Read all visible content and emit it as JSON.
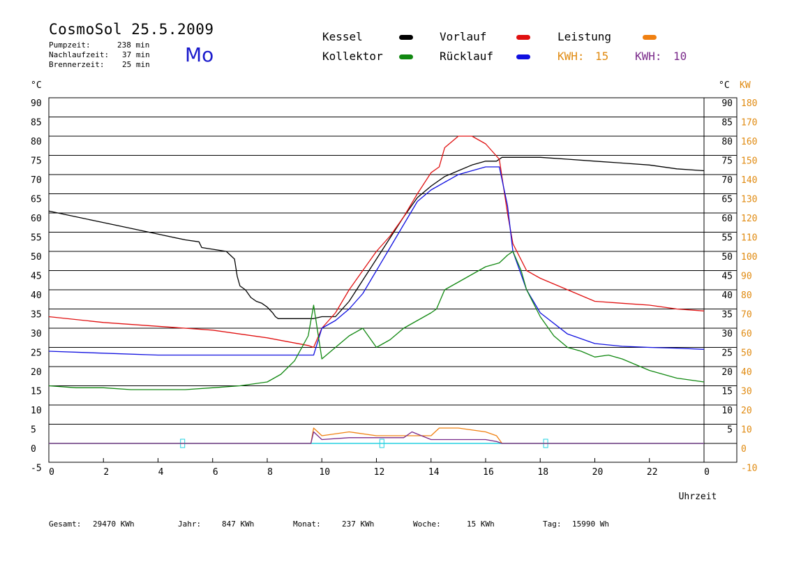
{
  "header": {
    "title": "CosmoSol 25.5.2009",
    "day": "Mo",
    "stats": [
      {
        "label": "Pumpzeit:",
        "value": "238 min"
      },
      {
        "label": "Nachlaufzeit:",
        "value": "37 min"
      },
      {
        "label": "Brennerzeit:",
        "value": "25 min"
      }
    ]
  },
  "legend": {
    "items": [
      {
        "label": "Kessel",
        "color": "#000000"
      },
      {
        "label": "Vorlauf",
        "color": "#e01010"
      },
      {
        "label": "Leistung",
        "color": "#f08010"
      },
      {
        "label": "Kollektor",
        "color": "#118811"
      },
      {
        "label": "Rücklauf",
        "color": "#1010e0"
      }
    ],
    "kwh": [
      {
        "label": "KWH:",
        "value": "15",
        "color": "#e08a10"
      },
      {
        "label": "KWH:",
        "value": "10",
        "color": "#7a2a8a"
      }
    ]
  },
  "footer": {
    "items": [
      {
        "label": "Gesamt:",
        "value": "29470 KWh"
      },
      {
        "label": "Jahr:",
        "value": "847 KWh"
      },
      {
        "label": "Monat:",
        "value": "237 KWh"
      },
      {
        "label": "Woche:",
        "value": "15 KWh"
      },
      {
        "label": "Tag:",
        "value": "15990 Wh"
      }
    ]
  },
  "chart_data": {
    "type": "line",
    "xlabel": "Uhrzeit",
    "ylabel_left": "°C",
    "ylabel_right": "°C",
    "ylabel_right2": "KW",
    "xlim": [
      0,
      24
    ],
    "ylim": [
      -5,
      90
    ],
    "x_ticks": [
      "0",
      "2",
      "4",
      "6",
      "8",
      "10",
      "12",
      "14",
      "16",
      "18",
      "20",
      "22",
      "0"
    ],
    "y_ticks_left": [
      "90",
      "85",
      "80",
      "75",
      "70",
      "65",
      "60",
      "55",
      "50",
      "45",
      "40",
      "35",
      "30",
      "25",
      "20",
      "15",
      "10",
      "5",
      "0",
      "-5"
    ],
    "y_ticks_right": [
      "90",
      "85",
      "80",
      "75",
      "70",
      "65",
      "60",
      "55",
      "50",
      "45",
      "40",
      "35",
      "30",
      "25",
      "20",
      "15",
      "10",
      "5"
    ],
    "y_ticks_kw": [
      "180",
      "170",
      "160",
      "150",
      "140",
      "130",
      "120",
      "110",
      "100",
      "90",
      "80",
      "70",
      "60",
      "50",
      "40",
      "30",
      "20",
      "10",
      "0",
      "-10"
    ],
    "series": [
      {
        "name": "Kessel",
        "color": "#000000",
        "x": [
          0,
          1,
          2,
          3,
          4,
          5,
          5.5,
          5.6,
          6.5,
          6.8,
          6.9,
          7.0,
          7.2,
          7.4,
          7.6,
          7.8,
          8.0,
          8.2,
          8.3,
          8.4,
          9.0,
          9.7,
          10.0,
          10.5,
          11,
          12,
          13,
          13.5,
          14,
          14.5,
          15,
          15.5,
          16,
          16.4,
          16.6,
          17,
          18,
          19,
          20,
          21,
          22,
          23,
          24
        ],
        "y": [
          60.5,
          59,
          57.5,
          56,
          54.5,
          53,
          52.5,
          51,
          50,
          48,
          43.5,
          41,
          40,
          38,
          37,
          36.5,
          35.5,
          34,
          33,
          32.5,
          32.5,
          32.5,
          33,
          33,
          37,
          48,
          59,
          64,
          67,
          69.5,
          71,
          72.5,
          73.5,
          73.5,
          74.5,
          74.5,
          74.5,
          74,
          73.5,
          73,
          72.5,
          71.5,
          71
        ]
      },
      {
        "name": "Vorlauf",
        "color": "#e01010",
        "x": [
          0,
          2,
          4,
          6,
          8,
          9.5,
          9.7,
          10,
          10.5,
          11,
          11.5,
          12,
          12.5,
          13,
          13.5,
          14,
          14.3,
          14.5,
          15,
          15.5,
          16,
          16.5,
          16.8,
          17,
          17.5,
          18,
          19,
          20,
          21,
          22,
          23,
          24
        ],
        "y": [
          33,
          31.5,
          30.5,
          29.5,
          27.5,
          25.5,
          25,
          30,
          34,
          40,
          45,
          50,
          54,
          59,
          65,
          70.5,
          72,
          77,
          80,
          80,
          78,
          74,
          60,
          52,
          45,
          43,
          40,
          37,
          36.5,
          36,
          35,
          34.5
        ]
      },
      {
        "name": "Rücklauf",
        "color": "#1010e0",
        "x": [
          0,
          2,
          4,
          6,
          8,
          9.7,
          10,
          10.5,
          11,
          11.5,
          12,
          12.5,
          13,
          13.5,
          14,
          14.5,
          15,
          15.5,
          16,
          16.5,
          16.8,
          17,
          17.5,
          18,
          19,
          20,
          21,
          22,
          23,
          24
        ],
        "y": [
          24,
          23.5,
          23,
          23,
          23,
          23,
          30,
          32,
          35,
          39,
          45,
          51,
          57,
          63,
          66,
          68,
          70,
          71,
          72,
          72,
          62,
          50,
          40,
          34,
          28.5,
          26,
          25.3,
          25,
          24.8,
          24.5
        ]
      },
      {
        "name": "Kollektor",
        "color": "#118811",
        "x": [
          0,
          1,
          2,
          3,
          4,
          5,
          6,
          7,
          8,
          8.5,
          9,
          9.5,
          9.7,
          10,
          10.5,
          11,
          11.5,
          12,
          12.5,
          13,
          13.5,
          14,
          14.2,
          14.5,
          15,
          15.5,
          16,
          16.5,
          16.8,
          17,
          17.3,
          17.5,
          18,
          18.5,
          19,
          19.5,
          20,
          20.5,
          21,
          22,
          23,
          24
        ],
        "y": [
          15,
          14.5,
          14.5,
          14,
          14,
          14,
          14.5,
          15,
          16,
          18,
          21.5,
          28,
          36,
          22,
          25,
          28,
          30,
          25,
          27,
          30,
          32,
          34,
          35,
          40,
          42,
          44,
          46,
          47,
          49,
          50,
          45,
          40,
          33,
          28,
          25,
          24,
          22.5,
          23,
          22,
          19,
          17,
          16
        ]
      },
      {
        "name": "Leistung",
        "color": "#f08010",
        "x": [
          0,
          9.6,
          9.7,
          10,
          11,
          12,
          13,
          14,
          14.3,
          15,
          16,
          16.4,
          16.6,
          24
        ],
        "y": [
          0,
          0,
          4,
          2,
          3,
          2,
          2,
          2,
          4,
          4,
          3,
          2,
          0,
          0
        ]
      },
      {
        "name": "KWH 10",
        "color": "#7a2a8a",
        "x": [
          0,
          9.6,
          9.7,
          10,
          11,
          12,
          13,
          13.3,
          14,
          15,
          16,
          16.4,
          16.6,
          24
        ],
        "y": [
          0,
          0,
          3,
          1,
          1.5,
          1.5,
          1.5,
          3,
          1,
          1,
          1,
          0.5,
          0,
          0
        ]
      }
    ]
  }
}
